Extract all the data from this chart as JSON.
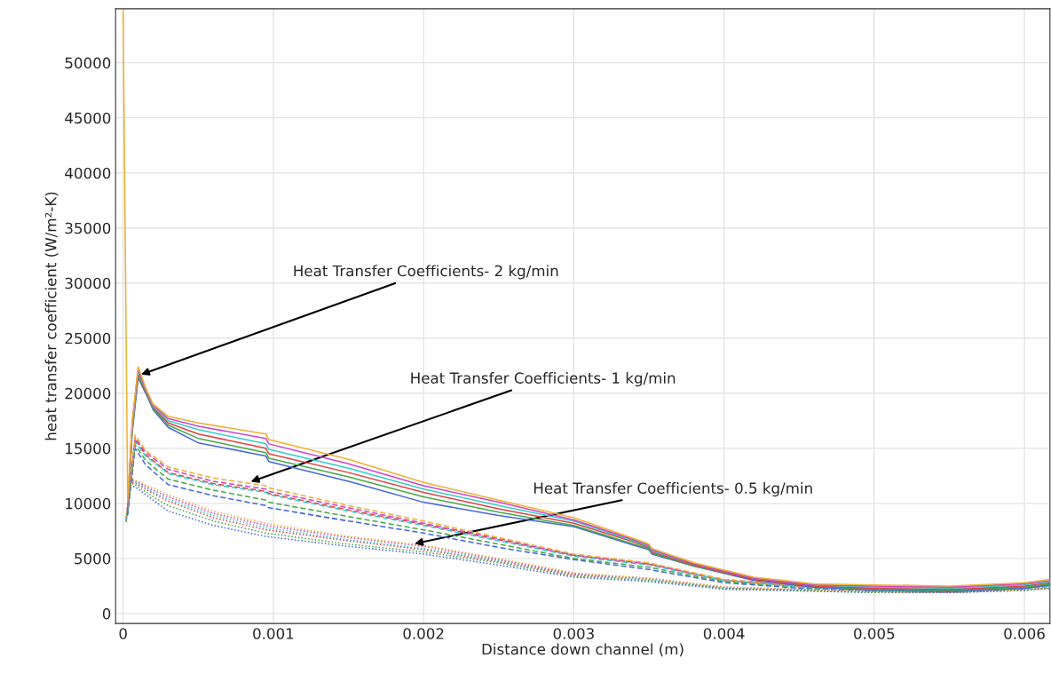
{
  "chart_data": {
    "type": "line",
    "xlabel": "Distance down channel (m)",
    "ylabel": "heat transfer coefficient (W/m²-K)",
    "xlim": [
      -5e-05,
      0.00617
    ],
    "ylim": [
      -900,
      54900
    ],
    "xticks": [
      0,
      0.001,
      0.002,
      0.003,
      0.004,
      0.005,
      0.006
    ],
    "yticks": [
      0,
      5000,
      10000,
      15000,
      20000,
      25000,
      30000,
      35000,
      40000,
      45000,
      50000
    ],
    "grid": true,
    "marker": "none",
    "annotations": [
      {
        "text": "Heat Transfer Coefficients- 2 kg/min",
        "x": 0.00012,
        "y": 21700
      },
      {
        "text": "Heat Transfer Coefficients- 1 kg/min",
        "x": 0.00085,
        "y": 11970
      },
      {
        "text": "Heat Transfer Coefficients- 0.5 kg/min",
        "x": 0.00194,
        "y": 6340
      }
    ],
    "series": [
      {
        "color": "#4466dd",
        "line_style": "solid",
        "x": [
          3e-05,
          6e-05,
          0.0001,
          0.00015,
          0.0002,
          0.0003,
          0.0005,
          0.00095,
          0.00097,
          0.0015,
          0.002,
          0.0025,
          0.003,
          0.0034,
          0.0035,
          0.00352,
          0.0038,
          0.0042,
          0.0046,
          0.005,
          0.0055,
          0.006,
          0.00617
        ],
        "values": [
          9100,
          16400,
          21400,
          20000,
          18500,
          16900,
          15500,
          14300,
          13800,
          12000,
          10100,
          8900,
          7900,
          6200,
          5800,
          5400,
          4300,
          3000,
          2400,
          2100,
          2000,
          2300,
          2600
        ]
      },
      {
        "color": "#44aa44",
        "line_style": "solid",
        "x": [
          3e-05,
          6e-05,
          0.0001,
          0.00015,
          0.0002,
          0.0003,
          0.0005,
          0.00095,
          0.00097,
          0.0015,
          0.002,
          0.0025,
          0.003,
          0.0034,
          0.0035,
          0.00352,
          0.0038,
          0.0042,
          0.0046,
          0.005,
          0.0055,
          0.006,
          0.00617
        ],
        "values": [
          9300,
          16600,
          21600,
          20100,
          18600,
          17100,
          15900,
          14600,
          14100,
          12400,
          10600,
          9200,
          8000,
          6300,
          5900,
          5500,
          4300,
          3100,
          2500,
          2200,
          2100,
          2400,
          2700
        ]
      },
      {
        "color": "#e04040",
        "line_style": "solid",
        "x": [
          3e-05,
          6e-05,
          0.0001,
          0.00015,
          0.0002,
          0.0003,
          0.0005,
          0.00095,
          0.00097,
          0.0015,
          0.002,
          0.0025,
          0.003,
          0.0034,
          0.0035,
          0.00352,
          0.0038,
          0.0042,
          0.0046,
          0.005,
          0.0055,
          0.006,
          0.00617
        ],
        "values": [
          9500,
          16800,
          21800,
          20200,
          18700,
          17300,
          16300,
          15000,
          14500,
          12800,
          11000,
          9500,
          8200,
          6500,
          6000,
          5600,
          4400,
          3100,
          2500,
          2300,
          2200,
          2500,
          2800
        ]
      },
      {
        "color": "#33cccc",
        "line_style": "solid",
        "x": [
          3e-05,
          6e-05,
          0.0001,
          0.00015,
          0.0002,
          0.0003,
          0.0005,
          0.00095,
          0.00097,
          0.0015,
          0.002,
          0.0025,
          0.003,
          0.0034,
          0.0035,
          0.00352,
          0.0038,
          0.0042,
          0.0046,
          0.005,
          0.0055,
          0.006,
          0.00617
        ],
        "values": [
          9700,
          17000,
          22000,
          20300,
          18800,
          17500,
          16700,
          15400,
          14900,
          13200,
          11300,
          9800,
          8400,
          6600,
          6100,
          5700,
          4500,
          3200,
          2600,
          2400,
          2300,
          2600,
          2900
        ]
      },
      {
        "color": "#cc44cc",
        "line_style": "solid",
        "x": [
          3e-05,
          6e-05,
          0.0001,
          0.00015,
          0.0002,
          0.0003,
          0.0005,
          0.00095,
          0.00097,
          0.0015,
          0.002,
          0.0025,
          0.003,
          0.0034,
          0.0035,
          0.00352,
          0.0038,
          0.0042,
          0.0046,
          0.005,
          0.0055,
          0.006,
          0.00617
        ],
        "values": [
          9900,
          17200,
          22200,
          20400,
          18900,
          17700,
          17000,
          15900,
          15400,
          13600,
          11600,
          10100,
          8500,
          6700,
          6200,
          5800,
          4500,
          3200,
          2600,
          2500,
          2400,
          2700,
          3000
        ]
      },
      {
        "color": "#f0b030",
        "line_style": "solid",
        "x": [
          0,
          3e-05,
          6e-05,
          0.0001,
          0.00015,
          0.0002,
          0.0003,
          0.0005,
          0.00095,
          0.00097,
          0.0015,
          0.002,
          0.0025,
          0.003,
          0.0034,
          0.0035,
          0.00352,
          0.0038,
          0.0042,
          0.0046,
          0.005,
          0.0055,
          0.006,
          0.00617
        ],
        "values": [
          54800,
          10100,
          17400,
          22400,
          20500,
          19000,
          17900,
          17300,
          16300,
          15800,
          14000,
          11900,
          10300,
          8700,
          6800,
          6300,
          5900,
          4600,
          3300,
          2700,
          2600,
          2500,
          2800,
          3100
        ]
      },
      {
        "color": "#4466dd",
        "line_style": "dashed",
        "x": [
          3e-05,
          8e-05,
          0.00015,
          0.0003,
          0.0006,
          0.00095,
          0.00097,
          0.0015,
          0.002,
          0.0025,
          0.003,
          0.0035,
          0.004,
          0.0045,
          0.005,
          0.0055,
          0.006,
          0.00617
        ],
        "values": [
          8900,
          15000,
          13500,
          11700,
          10700,
          9800,
          9600,
          8400,
          7300,
          6000,
          4900,
          4000,
          2800,
          2300,
          2100,
          2000,
          2300,
          2500
        ]
      },
      {
        "color": "#44aa44",
        "line_style": "dashed",
        "x": [
          3e-05,
          8e-05,
          0.00015,
          0.0003,
          0.0006,
          0.00095,
          0.00097,
          0.0015,
          0.002,
          0.0025,
          0.003,
          0.0035,
          0.004,
          0.0045,
          0.005,
          0.0055,
          0.006,
          0.00617
        ],
        "values": [
          9100,
          15300,
          13900,
          12200,
          11200,
          10300,
          10100,
          8800,
          7600,
          6300,
          5000,
          4200,
          2900,
          2400,
          2100,
          2000,
          2300,
          2500
        ]
      },
      {
        "color": "#e04040",
        "line_style": "dashed",
        "x": [
          3e-05,
          8e-05,
          0.00015,
          0.0003,
          0.0006,
          0.00095,
          0.00097,
          0.0015,
          0.002,
          0.0025,
          0.003,
          0.0035,
          0.004,
          0.0045,
          0.005,
          0.0055,
          0.006,
          0.00617
        ],
        "values": [
          9300,
          15800,
          14400,
          12800,
          11800,
          11100,
          10900,
          9400,
          8100,
          6700,
          5300,
          4500,
          3000,
          2500,
          2200,
          2100,
          2400,
          2600
        ]
      },
      {
        "color": "#33cccc",
        "line_style": "dashed",
        "x": [
          3e-05,
          8e-05,
          0.00015,
          0.0003,
          0.0006,
          0.00095,
          0.00097,
          0.0015,
          0.002,
          0.0025,
          0.003,
          0.0035,
          0.004,
          0.0045,
          0.005,
          0.0055,
          0.006,
          0.00617
        ],
        "values": [
          9500,
          15600,
          14300,
          12700,
          11700,
          11000,
          10800,
          9300,
          8000,
          6600,
          5200,
          4400,
          3000,
          2400,
          2100,
          2100,
          2300,
          2500
        ]
      },
      {
        "color": "#cc44cc",
        "line_style": "dashed",
        "x": [
          3e-05,
          8e-05,
          0.00015,
          0.0003,
          0.0006,
          0.00095,
          0.00097,
          0.0015,
          0.002,
          0.0025,
          0.003,
          0.0035,
          0.004,
          0.0045,
          0.005,
          0.0055,
          0.006,
          0.00617
        ],
        "values": [
          9700,
          16000,
          14600,
          13100,
          12000,
          11300,
          11100,
          9600,
          8200,
          6800,
          5300,
          4500,
          3100,
          2500,
          2200,
          2100,
          2400,
          2600
        ]
      },
      {
        "color": "#f0b030",
        "line_style": "dashed",
        "x": [
          3e-05,
          8e-05,
          0.00015,
          0.0003,
          0.0006,
          0.00095,
          0.00097,
          0.0015,
          0.002,
          0.0025,
          0.003,
          0.0035,
          0.004,
          0.0045,
          0.005,
          0.0055,
          0.006,
          0.00617
        ],
        "values": [
          9900,
          16200,
          14800,
          13300,
          12300,
          11600,
          11400,
          9800,
          8400,
          6900,
          5400,
          4600,
          3100,
          2500,
          2200,
          2100,
          2400,
          2600
        ]
      },
      {
        "color": "#4466dd",
        "line_style": "dotted",
        "x": [
          2e-05,
          5e-05,
          0.0001,
          0.0002,
          0.0003,
          0.0006,
          0.00095,
          0.0015,
          0.002,
          0.0025,
          0.003,
          0.0035,
          0.004,
          0.005,
          0.0055,
          0.006,
          0.00617
        ],
        "values": [
          8300,
          11700,
          11300,
          10300,
          9300,
          8000,
          7000,
          6100,
          5400,
          4400,
          3300,
          2900,
          2200,
          1900,
          1900,
          2100,
          2300
        ]
      },
      {
        "color": "#44aa44",
        "line_style": "dotted",
        "x": [
          2e-05,
          5e-05,
          0.0001,
          0.0002,
          0.0003,
          0.0006,
          0.00095,
          0.0015,
          0.002,
          0.0025,
          0.003,
          0.0035,
          0.004,
          0.005,
          0.0055,
          0.006,
          0.00617
        ],
        "values": [
          8400,
          11900,
          11500,
          10600,
          9800,
          8400,
          7300,
          6300,
          5600,
          4600,
          3400,
          3000,
          2300,
          1900,
          1900,
          2100,
          2300
        ]
      },
      {
        "color": "#e04040",
        "line_style": "dotted",
        "x": [
          2e-05,
          5e-05,
          0.0001,
          0.0002,
          0.0003,
          0.0006,
          0.00095,
          0.0015,
          0.002,
          0.0025,
          0.003,
          0.0035,
          0.004,
          0.005,
          0.0055,
          0.006,
          0.00617
        ],
        "values": [
          8500,
          12000,
          11700,
          10900,
          10200,
          8700,
          7600,
          6600,
          5800,
          4700,
          3500,
          3100,
          2300,
          2000,
          1900,
          2200,
          2300
        ]
      },
      {
        "color": "#33cccc",
        "line_style": "dotted",
        "x": [
          2e-05,
          5e-05,
          0.0001,
          0.0002,
          0.0003,
          0.0006,
          0.00095,
          0.0015,
          0.002,
          0.0025,
          0.003,
          0.0035,
          0.004,
          0.005,
          0.0055,
          0.006,
          0.00617
        ],
        "values": [
          8600,
          12100,
          11800,
          11000,
          10400,
          8900,
          7800,
          6700,
          5900,
          4800,
          3600,
          3100,
          2300,
          2000,
          1900,
          2200,
          2300
        ]
      },
      {
        "color": "#cc44cc",
        "line_style": "dotted",
        "x": [
          2e-05,
          5e-05,
          0.0001,
          0.0002,
          0.0003,
          0.0006,
          0.00095,
          0.0015,
          0.002,
          0.0025,
          0.003,
          0.0035,
          0.004,
          0.005,
          0.0055,
          0.006,
          0.00617
        ],
        "values": [
          8700,
          12200,
          11900,
          11200,
          10600,
          9100,
          8000,
          6900,
          6100,
          4900,
          3600,
          3200,
          2400,
          2000,
          1900,
          2200,
          2300
        ]
      },
      {
        "color": "#f0b030",
        "line_style": "dotted",
        "x": [
          2e-05,
          5e-05,
          0.0001,
          0.0002,
          0.0003,
          0.0006,
          0.00095,
          0.0015,
          0.002,
          0.0025,
          0.003,
          0.0035,
          0.004,
          0.005,
          0.0055,
          0.006,
          0.00617
        ],
        "values": [
          8800,
          12300,
          12000,
          11400,
          10800,
          9300,
          8200,
          7000,
          6200,
          5000,
          3700,
          3200,
          2400,
          2000,
          2000,
          2200,
          2400
        ]
      }
    ]
  }
}
